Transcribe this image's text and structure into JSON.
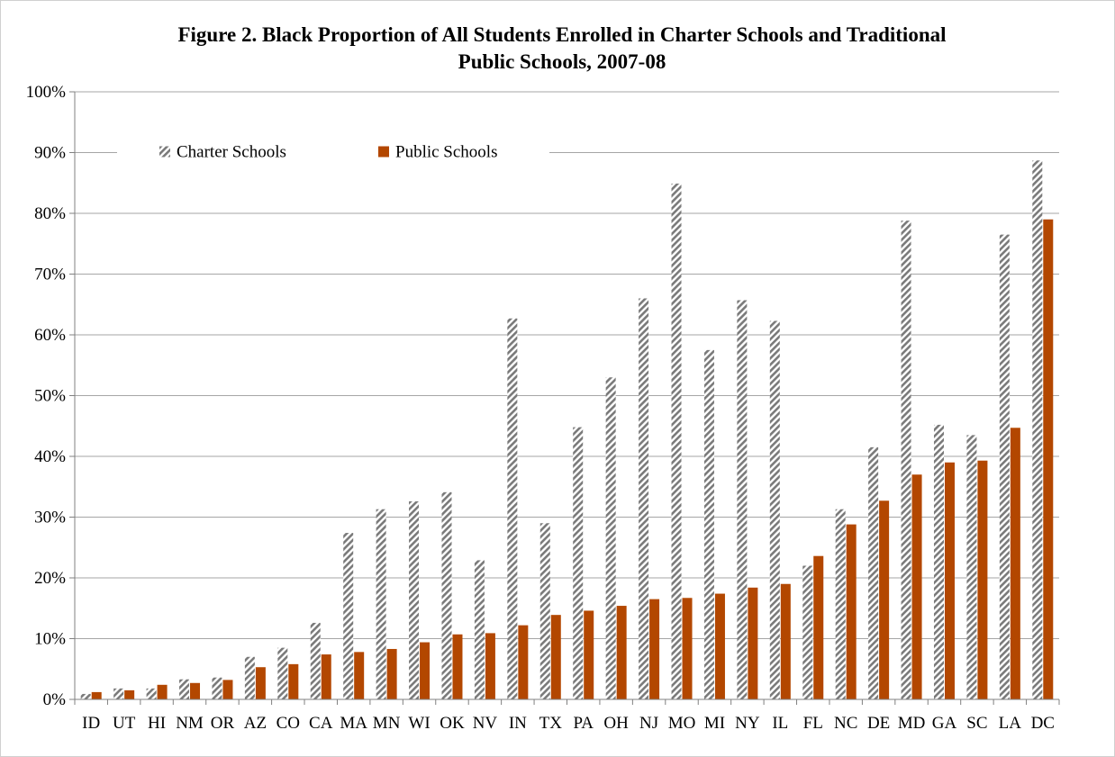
{
  "chart_data": {
    "type": "bar",
    "title_lines": [
      "Figure 2. Black Proportion of All Students Enrolled in Charter Schools and Traditional",
      "Public Schools, 2007-08"
    ],
    "xlabel": "",
    "ylabel": "",
    "ylim": [
      0,
      100
    ],
    "y_ticks": [
      "0%",
      "10%",
      "20%",
      "30%",
      "40%",
      "50%",
      "60%",
      "70%",
      "80%",
      "90%",
      "100%"
    ],
    "grid": true,
    "legend_position": "top",
    "categories": [
      "ID",
      "UT",
      "HI",
      "NM",
      "OR",
      "AZ",
      "CO",
      "CA",
      "MA",
      "MN",
      "WI",
      "OK",
      "NV",
      "IN",
      "TX",
      "PA",
      "OH",
      "NJ",
      "MO",
      "MI",
      "NY",
      "IL",
      "FL",
      "NC",
      "DE",
      "MD",
      "GA",
      "SC",
      "LA",
      "DC"
    ],
    "series": [
      {
        "name": "Charter Schools",
        "color": "#808080",
        "pattern": "diagonal-hatch",
        "values": [
          0.9,
          1.8,
          1.8,
          3.3,
          3.6,
          7.0,
          8.5,
          12.6,
          27.4,
          31.3,
          32.6,
          34.1,
          22.9,
          62.7,
          29.0,
          44.8,
          53.0,
          66.0,
          84.9,
          57.5,
          65.7,
          62.3,
          22.0,
          31.3,
          41.5,
          78.8,
          45.2,
          43.5,
          76.5,
          88.7
        ]
      },
      {
        "name": "Public Schools",
        "color": "#B34700",
        "pattern": "solid",
        "values": [
          1.2,
          1.5,
          2.4,
          2.7,
          3.2,
          5.3,
          5.8,
          7.4,
          7.8,
          8.3,
          9.4,
          10.7,
          10.9,
          12.2,
          13.9,
          14.6,
          15.4,
          16.5,
          16.7,
          17.4,
          18.4,
          19.0,
          23.6,
          28.8,
          32.7,
          37.0,
          39.0,
          39.3,
          44.7,
          79.0
        ]
      }
    ]
  }
}
